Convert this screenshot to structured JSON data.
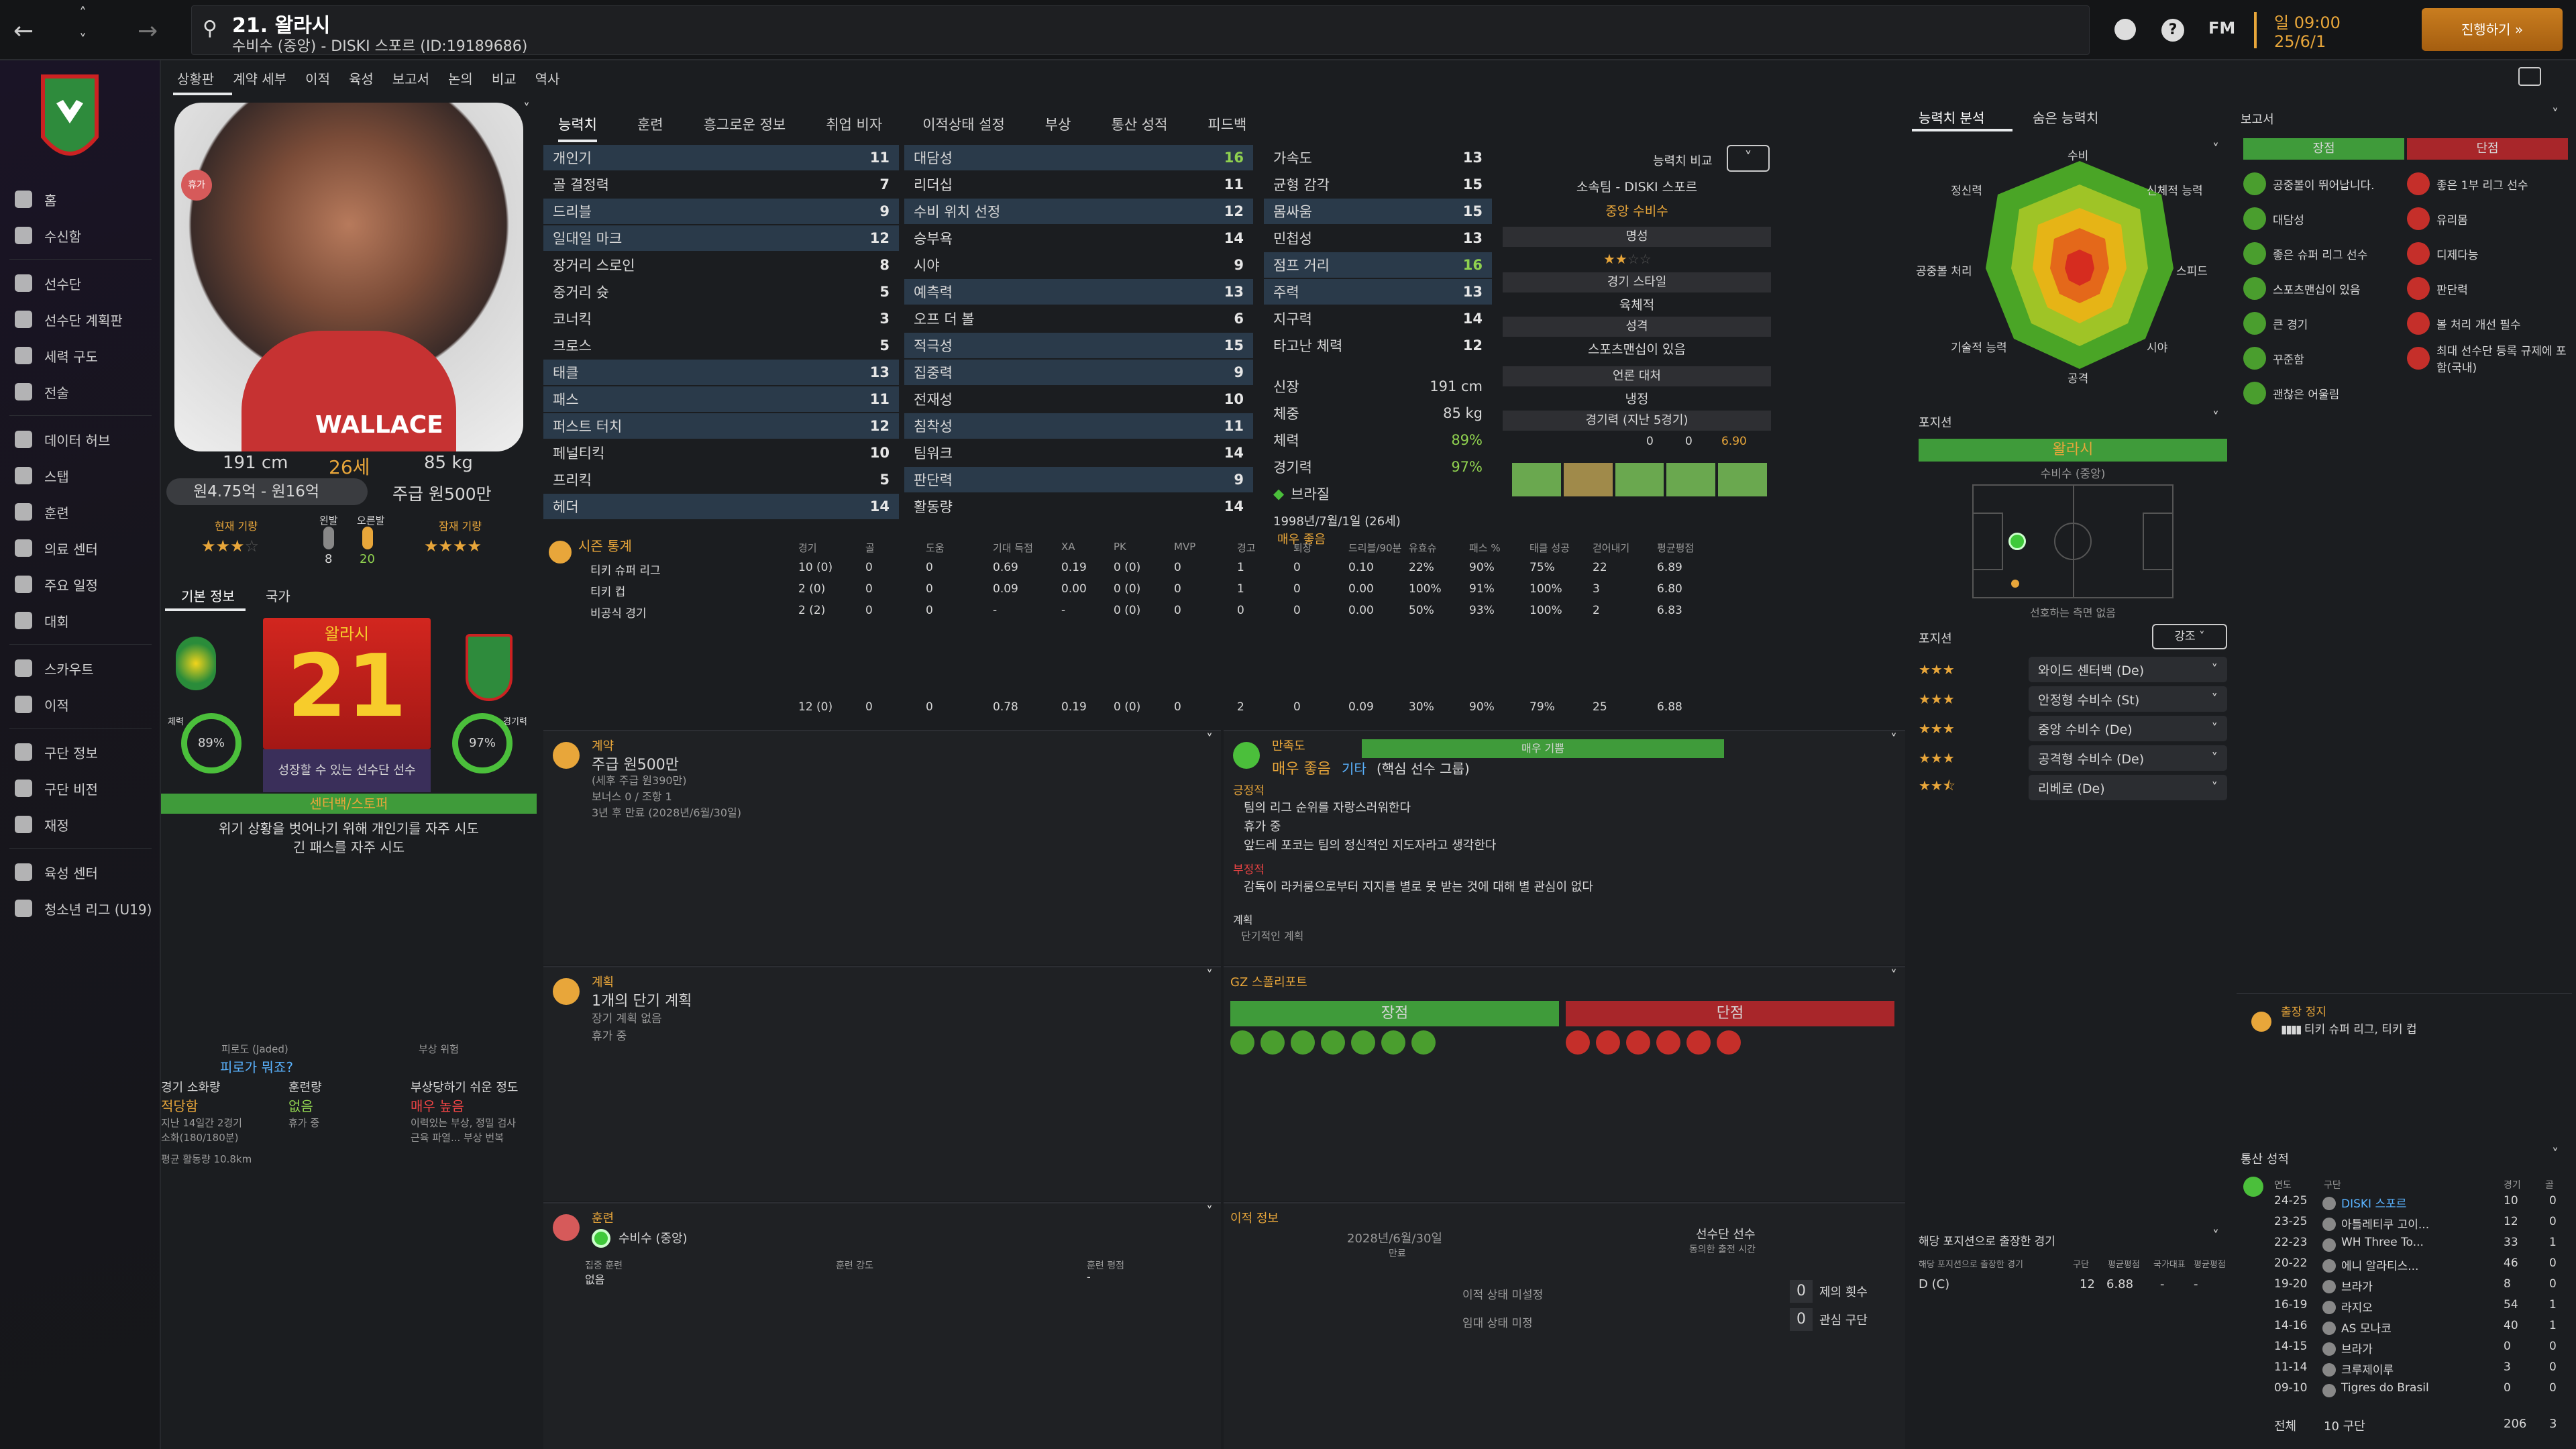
{
  "topbar": {
    "player_name": "21. 왈라시",
    "player_sub": "수비수 (중앙) - DISKI 스포르 (ID:19189686)",
    "fm": "FM",
    "day": "일 09:00",
    "date": "25/6/1",
    "continue": "진행하기"
  },
  "nav": {
    "items": [
      "홈",
      "수신함",
      "선수단",
      "선수단 계획판",
      "세력 구도",
      "전술",
      "데이터 허브",
      "스탭",
      "훈련",
      "의료 센터",
      "주요 일정",
      "대회",
      "스카우트",
      "이적",
      "구단 정보",
      "구단 비전",
      "재정",
      "육성 센터",
      "청소년 리그 (U19)"
    ]
  },
  "header_tabs": [
    "상황판",
    "계약 세부",
    "이적",
    "육성",
    "보고서",
    "논의",
    "비교",
    "역사"
  ],
  "profile": {
    "shirt_name": "WALLACE",
    "badge": "휴가",
    "height": "191 cm",
    "age": "26세",
    "weight": "85 kg",
    "value": "원4.75억 - 원16억",
    "wage": "주급 원500만",
    "current_ability_label": "현재 기량",
    "potential_label": "잠재 기량",
    "left_foot": "왼발",
    "right_foot": "오른발",
    "left_foot_val": "8",
    "right_foot_val": "20",
    "tab1": "기본 정보",
    "tab2": "국가",
    "number": "21",
    "name_card": "왈라시",
    "fitness": "89%",
    "match_sharp": "97%",
    "fitness_lbl": "체력",
    "sharp_lbl": "경기력",
    "grow_note": "성장할 수 있는 선수단 선수",
    "role": "센터백/스토퍼",
    "trait1": "위기 상황을 벗어나기 위해 개인기를 자주 시도",
    "trait2": "긴 패스를 자주 시도",
    "fatigue_lbl": "피로도 (Jaded)",
    "fatigue_val": "피로가 뭐죠?",
    "injury_risk_lbl": "부상 위험",
    "load_lbl": "경기 소화량",
    "load_val": "적당함",
    "train_lbl": "훈련량",
    "train_val": "없음",
    "injury_lbl": "부상당하기 쉬운 정도",
    "injury_val": "매우 높음",
    "load_note1": "지난 14일간 2경기",
    "load_note2": "소화(180/180분)",
    "train_note": "휴가 중",
    "injury_note1": "이력있는 부상, 정밀 검사",
    "injury_note2": "근육 파열... 부상 번복",
    "avg_run": "평균 활동량 10.8km"
  },
  "attr_tabs": [
    "능력치",
    "훈련",
    "흥그로운 정보",
    "취업 비자",
    "이적상태 설정",
    "부상",
    "통산 성적",
    "피드백"
  ],
  "technical": [
    {
      "n": "개인기",
      "v": "11",
      "hl": true
    },
    {
      "n": "골 결정력",
      "v": "7"
    },
    {
      "n": "드리블",
      "v": "9",
      "hl": true
    },
    {
      "n": "일대일 마크",
      "v": "12",
      "hl": true
    },
    {
      "n": "장거리 스로인",
      "v": "8"
    },
    {
      "n": "중거리 슛",
      "v": "5"
    },
    {
      "n": "코너킥",
      "v": "3"
    },
    {
      "n": "크로스",
      "v": "5"
    },
    {
      "n": "태클",
      "v": "13",
      "hl": true
    },
    {
      "n": "패스",
      "v": "11",
      "hl": true
    },
    {
      "n": "퍼스트 터치",
      "v": "12",
      "hl": true
    },
    {
      "n": "페널티킥",
      "v": "10"
    },
    {
      "n": "프리킥",
      "v": "5"
    },
    {
      "n": "헤더",
      "v": "14",
      "hl": true
    }
  ],
  "mental": [
    {
      "n": "대담성",
      "v": "16",
      "c": "g",
      "hl": true
    },
    {
      "n": "리더십",
      "v": "11"
    },
    {
      "n": "수비 위치 선정",
      "v": "12",
      "hl": true
    },
    {
      "n": "승부욕",
      "v": "14"
    },
    {
      "n": "시야",
      "v": "9"
    },
    {
      "n": "예측력",
      "v": "13",
      "hl": true
    },
    {
      "n": "오프 더 볼",
      "v": "6"
    },
    {
      "n": "적극성",
      "v": "15",
      "hl": true
    },
    {
      "n": "집중력",
      "v": "9",
      "hl": true
    },
    {
      "n": "전재성",
      "v": "10"
    },
    {
      "n": "침착성",
      "v": "11",
      "hl": true
    },
    {
      "n": "팀워크",
      "v": "14"
    },
    {
      "n": "판단력",
      "v": "9",
      "hl": true
    },
    {
      "n": "활동량",
      "v": "14"
    }
  ],
  "physical": [
    {
      "n": "가속도",
      "v": "13"
    },
    {
      "n": "균형 감각",
      "v": "15"
    },
    {
      "n": "몸싸움",
      "v": "15",
      "hl": true
    },
    {
      "n": "민첩성",
      "v": "13"
    },
    {
      "n": "점프 거리",
      "v": "16",
      "c": "g",
      "hl": true
    },
    {
      "n": "주력",
      "v": "13",
      "hl": true
    },
    {
      "n": "지구력",
      "v": "14"
    },
    {
      "n": "타고난 체력",
      "v": "12"
    }
  ],
  "physinfo": {
    "h_lbl": "신장",
    "h": "191 cm",
    "w_lbl": "체중",
    "w": "85 kg",
    "fit_lbl": "체력",
    "fit": "89%",
    "sharp_lbl": "경기력",
    "sharp": "97%",
    "nation": "브라질",
    "dob": "1998년/7월/1일 (26세)",
    "status": "매우 좋음"
  },
  "compare": {
    "label": "능력치 비교",
    "club": "소속팀 - DISKI 스포르",
    "pos": "중앙 수비수",
    "fame_lbl": "명성",
    "style_lbl": "경기 스타일",
    "style": "육체적",
    "pers_lbl": "성격",
    "pers": "스포츠맨십이 있음",
    "media_lbl": "언론 대처",
    "media": "냉정",
    "form_lbl": "경기력 (지난 5경기)",
    "form_goal": "0",
    "form_assist": "0",
    "form_rating": "6.90"
  },
  "season_stats": {
    "title": "시즌 통계",
    "headers": [
      "경기",
      "골",
      "도움",
      "기대 득점",
      "XA",
      "PK",
      "MVP",
      "경고",
      "퇴장",
      "드리블/90분",
      "유효슈",
      "패스 %",
      "태클 성공",
      "걷어내기",
      "평균평점"
    ],
    "rows": [
      {
        "c": "티키 슈퍼 리그",
        "v": [
          "10 (0)",
          "0",
          "0",
          "0.69",
          "0.19",
          "0 (0)",
          "0",
          "1",
          "0",
          "0.10",
          "22%",
          "90%",
          "75%",
          "22",
          "6.89"
        ]
      },
      {
        "c": "티키 컵",
        "v": [
          "2 (0)",
          "0",
          "0",
          "0.09",
          "0.00",
          "0 (0)",
          "0",
          "1",
          "0",
          "0.00",
          "100%",
          "91%",
          "100%",
          "3",
          "6.80"
        ]
      },
      {
        "c": "비공식 경기",
        "v": [
          "2 (2)",
          "0",
          "0",
          "-",
          "-",
          "0 (0)",
          "0",
          "0",
          "0",
          "0.00",
          "50%",
          "93%",
          "100%",
          "2",
          "6.83"
        ]
      }
    ],
    "total": [
      "12 (0)",
      "0",
      "0",
      "0.78",
      "0.19",
      "0 (0)",
      "0",
      "2",
      "0",
      "0.09",
      "30%",
      "90%",
      "79%",
      "25",
      "6.88"
    ]
  },
  "contract": {
    "title": "계약",
    "wage": "주급 원500만",
    "sub": "(세후 주급 원390만)",
    "bonus": "보너스 0 / 조항 1",
    "expiry": "3년 후 만료 (2028년/6월/30일)"
  },
  "satisfaction": {
    "title": "만족도",
    "bar": "매우 기쁨",
    "val": "매우 좋음",
    "group": "기타",
    "group2": "(핵심 선수 그룹)",
    "pos_lbl": "긍정적",
    "pos": [
      "팀의 리그 순위를 자랑스러워한다",
      "휴가 중",
      "앞드레 포코는 팀의 정신적인 지도자라고 생각한다"
    ],
    "neg_lbl": "부정적",
    "neg": [
      "감독이 라커룸으로부터 지지를 별로 못 받는 것에 대해 별 관심이 없다"
    ],
    "plan_lbl": "계획",
    "plan": "단기적인 계획"
  },
  "plans": {
    "title": "계획",
    "one": "1개의 단기 계획",
    "long": "장기 계획 없음",
    "vac": "휴가 중"
  },
  "scout": {
    "title": "GZ 스폴리포트",
    "pros": "장점",
    "cons": "단점"
  },
  "training": {
    "title": "훈련",
    "role": "수비수 (중앙)",
    "focus_lbl": "집중 훈련",
    "focus": "없음",
    "intensity_lbl": "훈련 강도",
    "rating_lbl": "훈련 평점",
    "rating": "-"
  },
  "transfer": {
    "title": "이적 정보",
    "date": "2028년/6월/30일",
    "date_lbl": "만료",
    "squad": "선수단 선수",
    "squad_lbl": "동의한 출전 시간",
    "st1": "이적 상태 미설정",
    "st2": "임대 상태 미정",
    "offers": "0",
    "offers_lbl": "제의 횟수",
    "interest": "0",
    "interest_lbl": "관심 구단"
  },
  "ability": {
    "tab1": "능력치 분석",
    "tab2": "숨은 능력치",
    "radar": [
      "수비",
      "신체적 능력",
      "스피드",
      "시야",
      "공격",
      "기술적 능력",
      "공중볼 처리",
      "정신력"
    ]
  },
  "position": {
    "title": "포지션",
    "name": "왈라시",
    "role": "수비수 (중앙)",
    "note": "선호하는 측면 없음",
    "roles_lbl": "포지션",
    "roles_sel": "강조",
    "roles": [
      {
        "n": "와이드 센터백 (De)",
        "s": 3
      },
      {
        "n": "안정형 수비수 (St)",
        "s": 3
      },
      {
        "n": "중앙 수비수 (De)",
        "s": 3
      },
      {
        "n": "공격형 수비수 (De)",
        "s": 3
      },
      {
        "n": "리베로 (De)",
        "s": 2.5
      }
    ]
  },
  "played": {
    "title": "해당 포지션으로 출장한 경기",
    "h1": "해당 포지션으로 출장한 경기",
    "h2": "구단",
    "h3": "평균평점",
    "h4": "국가대표",
    "h5": "평균평점",
    "row": [
      "D (C)",
      "12",
      "6.88",
      "-",
      "-"
    ]
  },
  "report": {
    "title": "보고서",
    "pros": "장점",
    "cons": "단점",
    "pro_items": [
      "공중볼이 뛰어납니다.",
      "대담성",
      "좋은 슈퍼 리그 선수",
      "스포츠맨십이 있음",
      "큰 경기",
      "꾸준함",
      "괜찮은 어울림"
    ],
    "con_items": [
      "좋은 1부 리그 선수",
      "유리몸",
      "디제다능",
      "판단력",
      "볼 처리 개선 필수",
      "최대 선수단 등록 규제에 포함(국내)"
    ]
  },
  "suspension": {
    "title": "출장 정지",
    "val": "티키 슈퍼 리그, 티키 컵"
  },
  "career": {
    "title": "통산 성적",
    "h": [
      "연도",
      "구단",
      "경기",
      "골"
    ],
    "rows": [
      [
        "24-25",
        "DISKI 스포르",
        "10",
        "0"
      ],
      [
        "23-25",
        "아틀레티쿠 고이...",
        "12",
        "0"
      ],
      [
        "22-23",
        "WH Three To...",
        "33",
        "1"
      ],
      [
        "20-22",
        "에니 알라티스...",
        "46",
        "0"
      ],
      [
        "19-20",
        "브라가",
        "8",
        "0"
      ],
      [
        "16-19",
        "라지오",
        "54",
        "1"
      ],
      [
        "14-16",
        "AS 모나코",
        "40",
        "1"
      ],
      [
        "14-15",
        "브라가",
        "0",
        "0"
      ],
      [
        "11-14",
        "크루제이루",
        "3",
        "0"
      ],
      [
        "09-10",
        "Tigres do Brasil",
        "0",
        "0"
      ]
    ],
    "total_lbl": "전체",
    "total_club": "10 구단",
    "total_apps": "206",
    "total_goals": "3"
  }
}
